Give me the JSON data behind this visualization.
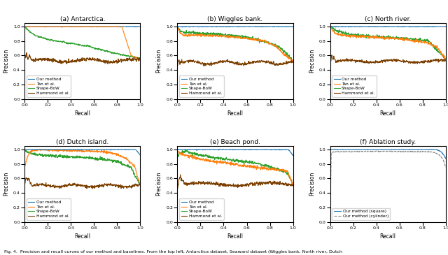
{
  "subplots": [
    {
      "title": "(a) Antarctica.",
      "label": "a"
    },
    {
      "title": "(b) Wiggles bank.",
      "label": "b"
    },
    {
      "title": "(c) North river.",
      "label": "c"
    },
    {
      "title": "(d) Dutch island.",
      "label": "d"
    },
    {
      "title": "(e) Beach pond.",
      "label": "e"
    },
    {
      "title": "(f) Ablation study.",
      "label": "f"
    }
  ],
  "legend_labels_main": [
    "Our method",
    "Tan et al.",
    "Shape-BoW",
    "Hammond et al."
  ],
  "legend_labels_ablation": [
    "Our method (square)",
    "Our method (cylinder)"
  ],
  "colors": {
    "our_method": "#1f77b4",
    "tan": "#ff7f0e",
    "shape_bow": "#2ca02c",
    "hammond": "#7b3f00"
  },
  "figcaption": "Fig. 4.  Precision and recall curves of our method and baselines. From the top left, Antarctica dataset, Seaward dataset (Wiggles bank, North river, Dutch"
}
